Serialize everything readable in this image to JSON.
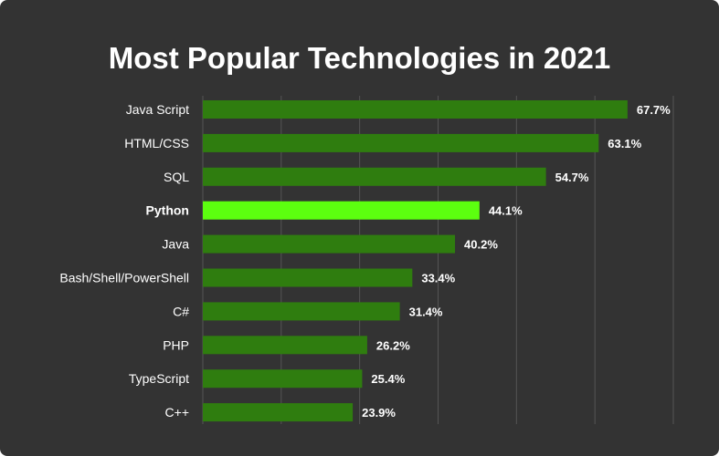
{
  "chart_data": {
    "type": "bar",
    "orientation": "horizontal",
    "title": "Most Popular Technologies in 2021",
    "xlabel": "",
    "ylabel": "",
    "xlim": [
      0,
      75
    ],
    "grid": true,
    "highlight": "Python",
    "categories": [
      "Java Script",
      "HTML/CSS",
      "SQL",
      "Python",
      "Java",
      "Bash/Shell/PowerShell",
      "C#",
      "PHP",
      "TypeScript",
      "C++"
    ],
    "values": [
      67.7,
      63.1,
      54.7,
      44.1,
      40.2,
      33.4,
      31.4,
      26.2,
      25.4,
      23.9
    ],
    "value_labels": [
      "67.7%",
      "63.1%",
      "54.7%",
      "44.1%",
      "40.2%",
      "33.4%",
      "31.4%",
      "26.2%",
      "25.4%",
      "23.9%"
    ],
    "colors": {
      "background": "#333333",
      "bar": "#2f7d0f",
      "highlight_bar": "#5cff0f",
      "grid": "#555555",
      "text": "#ffffff"
    }
  }
}
